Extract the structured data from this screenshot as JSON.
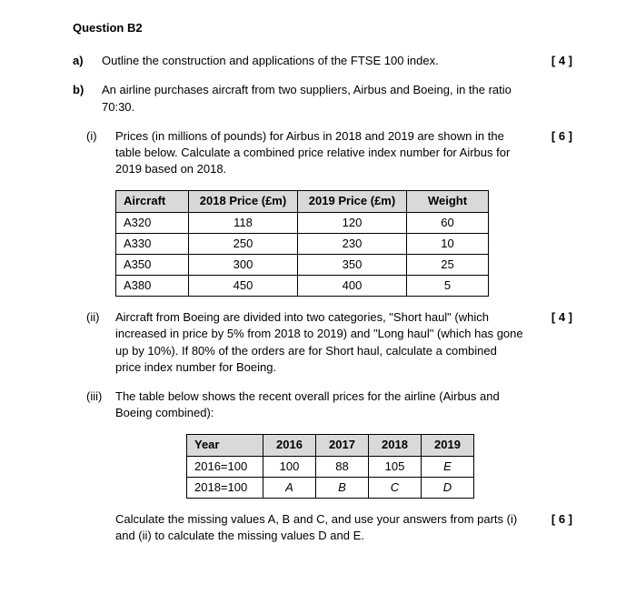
{
  "question_title": "Question B2",
  "parts": {
    "a": {
      "label": "a)",
      "text": "Outline the construction and applications of the FTSE 100 index.",
      "marks": "[ 4 ]"
    },
    "b": {
      "label": "b)",
      "text": "An airline purchases aircraft from two suppliers, Airbus and Boeing, in the ratio 70:30."
    },
    "bi": {
      "label": "(i)",
      "text": "Prices (in millions of pounds) for Airbus in 2018 and 2019 are shown in the table below. Calculate a combined price relative index number for Airbus for 2019 based on 2018.",
      "marks": "[ 6 ]"
    },
    "bii": {
      "label": "(ii)",
      "text": "Aircraft from Boeing are divided into two categories, \"Short haul\" (which increased in price by 5% from 2018 to 2019) and \"Long haul\" (which has gone up by 10%). If 80% of the orders are for Short haul, calculate a combined price index number for Boeing.",
      "marks": "[ 4 ]"
    },
    "biii": {
      "label": "(iii)",
      "text": "The table below shows the recent overall prices for the airline (Airbus and Boeing combined):"
    },
    "calc": {
      "text": "Calculate the missing values A, B and C, and use your answers from parts (i) and (ii) to calculate the missing values D and E.",
      "marks": "[ 6 ]"
    }
  },
  "aircraft_table": {
    "type": "table",
    "columns": [
      "Aircraft",
      "2018 Price (£m)",
      "2019 Price (£m)",
      "Weight"
    ],
    "rows": [
      [
        "A320",
        "118",
        "120",
        "60"
      ],
      [
        "A330",
        "250",
        "230",
        "10"
      ],
      [
        "A350",
        "300",
        "350",
        "25"
      ],
      [
        "A380",
        "450",
        "400",
        "5"
      ]
    ],
    "header_bg": "#d9d9d9",
    "border_color": "#000000"
  },
  "year_table": {
    "type": "table",
    "columns": [
      "Year",
      "2016",
      "2017",
      "2018",
      "2019"
    ],
    "rows": [
      [
        "2016=100",
        "100",
        "88",
        "105",
        "E"
      ],
      [
        "2018=100",
        "A",
        "B",
        "C",
        "D"
      ]
    ],
    "header_bg": "#d9d9d9",
    "border_color": "#000000",
    "italic_cells": [
      "E",
      "A",
      "B",
      "C",
      "D"
    ]
  }
}
